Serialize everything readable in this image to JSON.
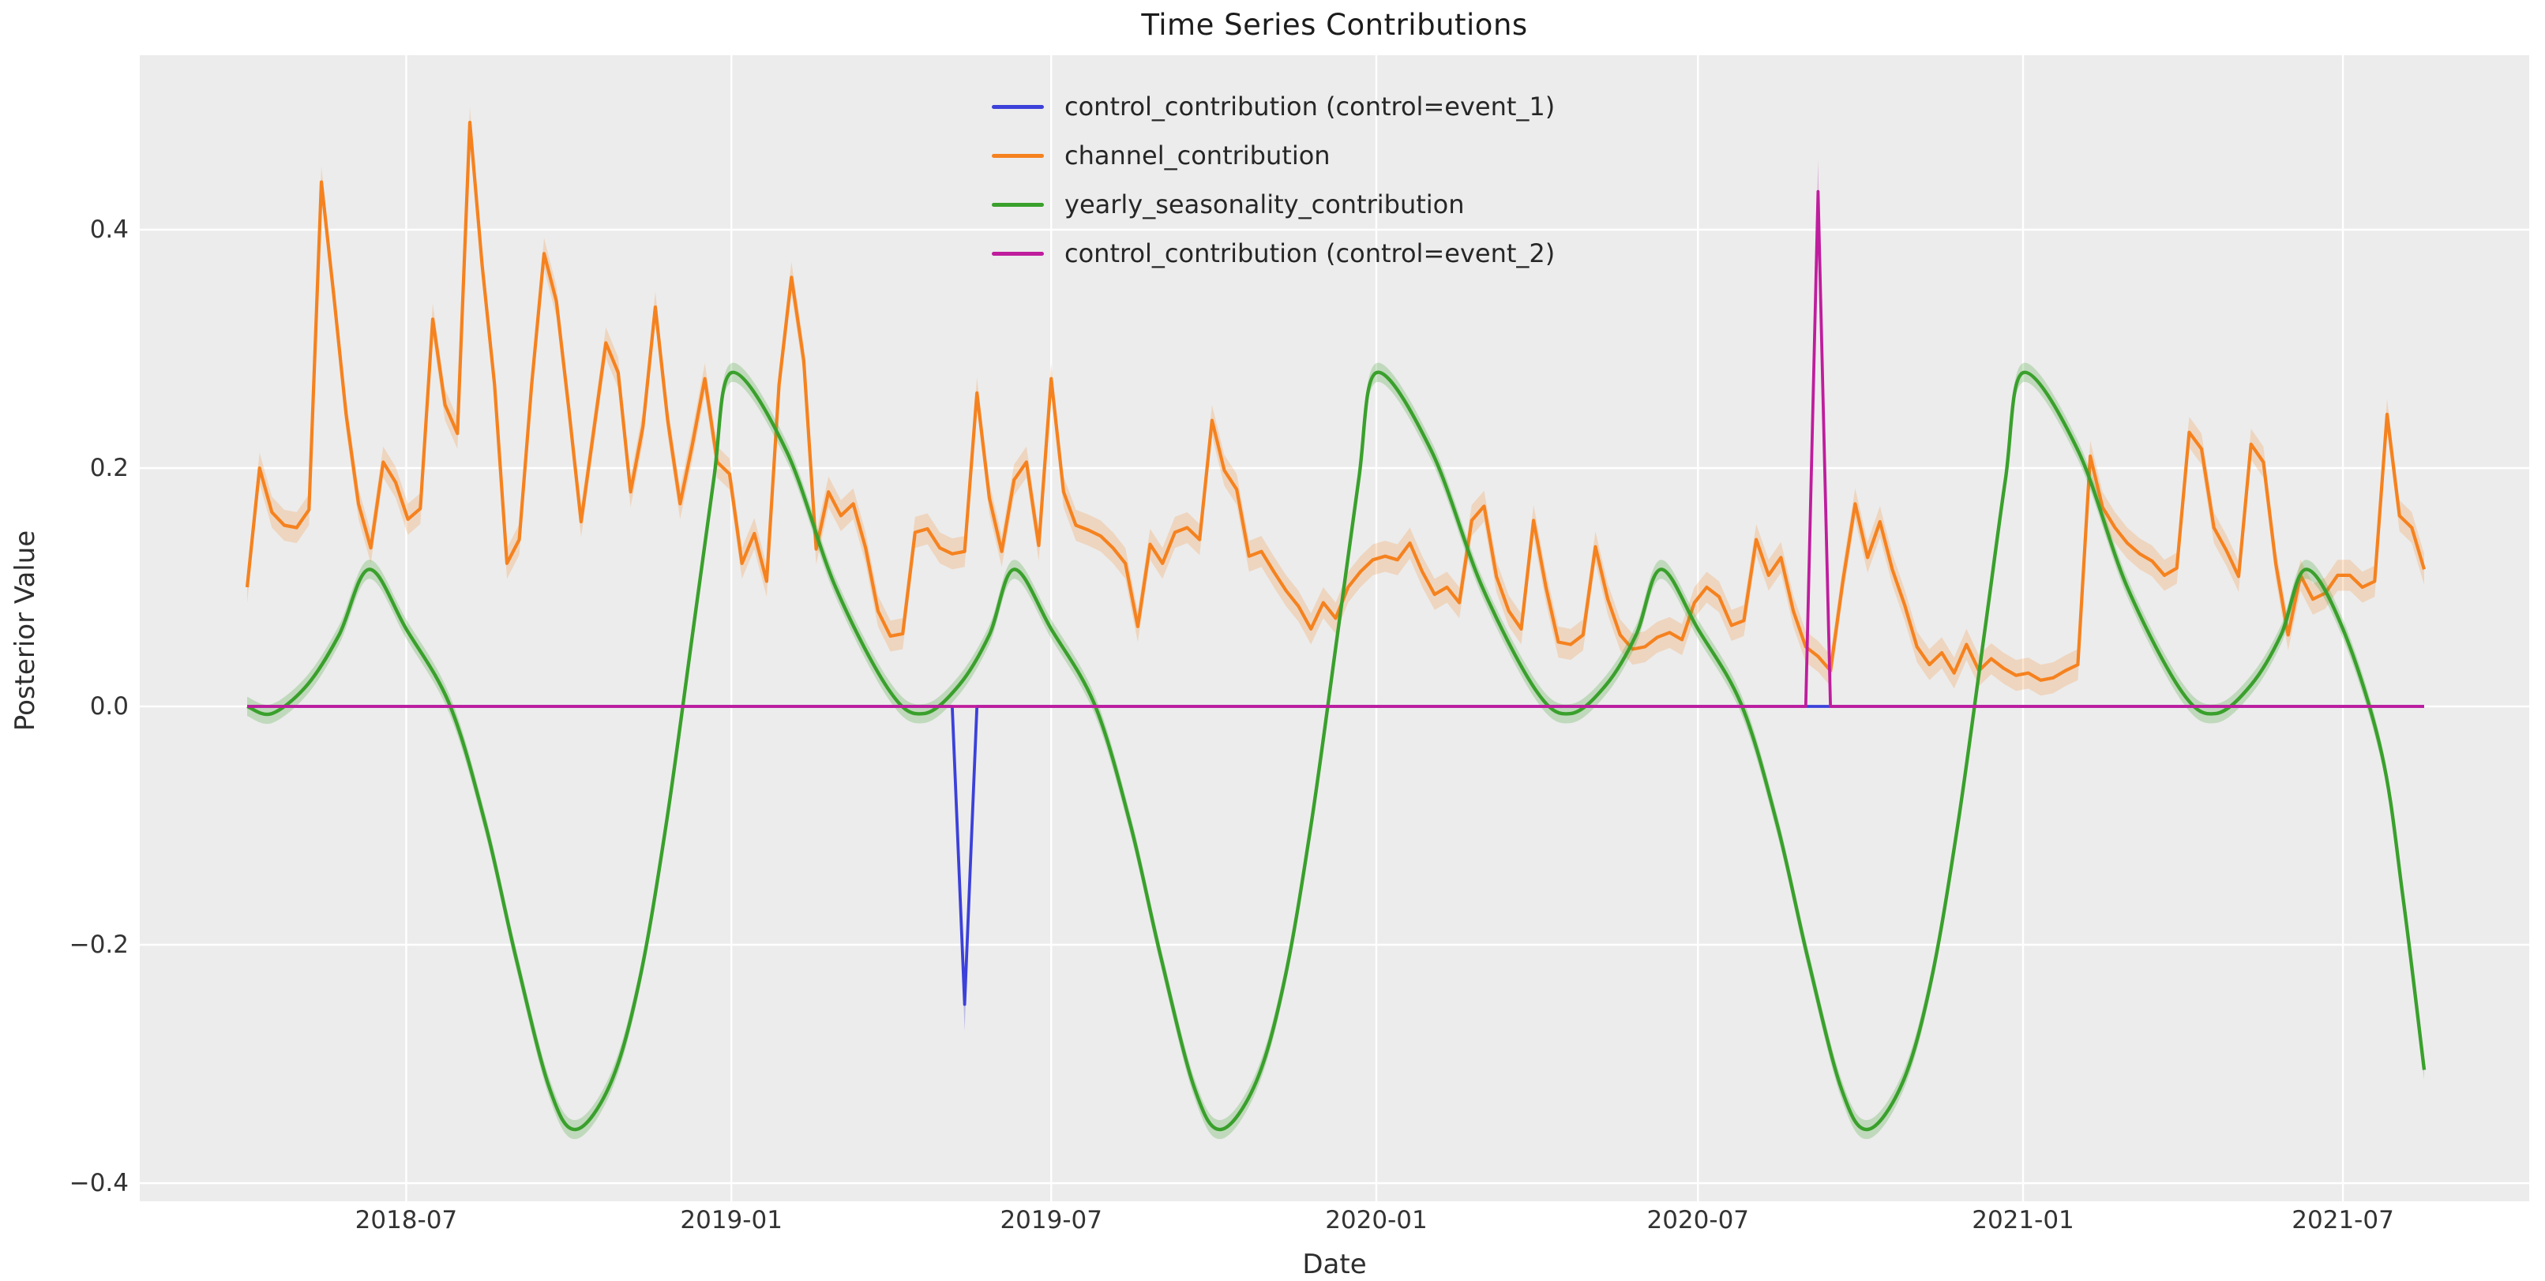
{
  "chart_data": {
    "type": "line",
    "title": "Time Series Contributions",
    "xlabel": "Date",
    "ylabel": "Posterior Value",
    "grid": true,
    "legend_position": "upper center (no frame)",
    "background_color": "#ececec",
    "grid_color": "#ffffff",
    "start_date": "2018-04-02",
    "freq_days": 7,
    "total_days": 1232,
    "ylim": [
      -0.4152,
      0.5464
    ],
    "y_ticks": [
      0.4,
      0.2,
      0.0,
      -0.2,
      -0.4
    ],
    "y_tick_labels": [
      "0.4",
      "0.2",
      "0.0",
      "−0.2",
      "−0.4"
    ],
    "x_tick_days": [
      90,
      274,
      455,
      639,
      821,
      1005,
      1186
    ],
    "x_tick_labels": [
      "2018-07",
      "2019-01",
      "2019-07",
      "2020-01",
      "2020-07",
      "2021-01",
      "2021-07"
    ],
    "series": [
      {
        "name": "control_contribution (control=event_1)",
        "color": "#3c41d9",
        "kind": "spike",
        "band_frac": 0.09,
        "points_days": [
          0,
          399,
          406,
          413,
          1232
        ],
        "points_values": [
          0,
          0,
          -0.25,
          0,
          0
        ],
        "spike_note": "flat at 0 with single downward spike to -0.25 near 2019-05"
      },
      {
        "name": "channel_contribution",
        "color": "#f5821f",
        "kind": "weekly",
        "band": 0.013,
        "values": [
          0.1,
          0.2,
          0.163,
          0.152,
          0.15,
          0.165,
          0.44,
          0.345,
          0.245,
          0.17,
          0.133,
          0.205,
          0.188,
          0.157,
          0.166,
          0.325,
          0.253,
          0.229,
          0.49,
          0.37,
          0.27,
          0.12,
          0.14,
          0.27,
          0.38,
          0.34,
          0.25,
          0.155,
          0.23,
          0.305,
          0.28,
          0.18,
          0.235,
          0.335,
          0.24,
          0.17,
          0.22,
          0.275,
          0.205,
          0.195,
          0.12,
          0.145,
          0.105,
          0.27,
          0.36,
          0.29,
          0.132,
          0.18,
          0.16,
          0.17,
          0.133,
          0.08,
          0.059,
          0.061,
          0.146,
          0.149,
          0.133,
          0.128,
          0.13,
          0.263,
          0.175,
          0.13,
          0.19,
          0.205,
          0.135,
          0.275,
          0.18,
          0.152,
          0.148,
          0.143,
          0.133,
          0.12,
          0.067,
          0.136,
          0.12,
          0.146,
          0.15,
          0.14,
          0.24,
          0.198,
          0.182,
          0.126,
          0.13,
          0.113,
          0.097,
          0.084,
          0.065,
          0.087,
          0.074,
          0.1,
          0.113,
          0.123,
          0.126,
          0.123,
          0.137,
          0.113,
          0.094,
          0.1,
          0.087,
          0.156,
          0.168,
          0.109,
          0.08,
          0.065,
          0.156,
          0.1,
          0.054,
          0.052,
          0.06,
          0.134,
          0.09,
          0.06,
          0.048,
          0.05,
          0.058,
          0.062,
          0.056,
          0.087,
          0.1,
          0.092,
          0.068,
          0.072,
          0.14,
          0.11,
          0.125,
          0.08,
          0.05,
          0.042,
          0.03,
          0.105,
          0.17,
          0.125,
          0.155,
          0.115,
          0.085,
          0.05,
          0.035,
          0.045,
          0.028,
          0.052,
          0.03,
          0.04,
          0.032,
          0.026,
          0.028,
          0.022,
          0.024,
          0.03,
          0.035,
          0.21,
          0.167,
          0.15,
          0.137,
          0.128,
          0.122,
          0.11,
          0.116,
          0.23,
          0.216,
          0.15,
          0.131,
          0.109,
          0.22,
          0.205,
          0.12,
          0.06,
          0.11,
          0.09,
          0.095,
          0.11,
          0.11,
          0.1,
          0.105,
          0.245,
          0.16,
          0.15,
          0.115
        ]
      },
      {
        "name": "yearly_seasonality_contribution",
        "color": "#3aa02c",
        "kind": "smooth",
        "band": 0.008,
        "control_points": [
          [
            0,
            0.0
          ],
          [
            14,
            -0.006
          ],
          [
            34,
            0.018
          ],
          [
            52,
            0.06
          ],
          [
            69,
            0.115
          ],
          [
            90,
            0.065
          ],
          [
            115,
            0.0
          ],
          [
            135,
            -0.1
          ],
          [
            152,
            -0.21
          ],
          [
            171,
            -0.32
          ],
          [
            186,
            -0.355
          ],
          [
            206,
            -0.315
          ],
          [
            222,
            -0.23
          ],
          [
            237,
            -0.1
          ],
          [
            252,
            0.06
          ],
          [
            264,
            0.19
          ],
          [
            274,
            0.28
          ],
          [
            305,
            0.215
          ],
          [
            333,
            0.1
          ],
          [
            364,
            0.012
          ],
          [
            383,
            -0.006
          ],
          [
            403,
            0.018
          ],
          [
            420,
            0.06
          ],
          [
            434,
            0.115
          ],
          [
            455,
            0.065
          ],
          [
            480,
            0.0
          ],
          [
            500,
            -0.1
          ],
          [
            517,
            -0.21
          ],
          [
            536,
            -0.32
          ],
          [
            551,
            -0.355
          ],
          [
            571,
            -0.315
          ],
          [
            587,
            -0.23
          ],
          [
            602,
            -0.1
          ],
          [
            617,
            0.06
          ],
          [
            629,
            0.19
          ],
          [
            639,
            0.28
          ],
          [
            670,
            0.215
          ],
          [
            699,
            0.1
          ],
          [
            730,
            0.012
          ],
          [
            749,
            -0.006
          ],
          [
            769,
            0.018
          ],
          [
            786,
            0.06
          ],
          [
            800,
            0.115
          ],
          [
            821,
            0.065
          ],
          [
            846,
            0.0
          ],
          [
            866,
            -0.1
          ],
          [
            883,
            -0.21
          ],
          [
            902,
            -0.32
          ],
          [
            917,
            -0.355
          ],
          [
            937,
            -0.315
          ],
          [
            953,
            -0.23
          ],
          [
            968,
            -0.1
          ],
          [
            983,
            0.06
          ],
          [
            995,
            0.19
          ],
          [
            1005,
            0.28
          ],
          [
            1036,
            0.215
          ],
          [
            1064,
            0.1
          ],
          [
            1095,
            0.012
          ],
          [
            1114,
            -0.006
          ],
          [
            1134,
            0.018
          ],
          [
            1151,
            0.06
          ],
          [
            1165,
            0.115
          ],
          [
            1186,
            0.065
          ],
          [
            1208,
            -0.04
          ],
          [
            1220,
            -0.16
          ],
          [
            1232,
            -0.305
          ]
        ]
      },
      {
        "name": "control_contribution (control=event_2)",
        "color": "#bf1d9d",
        "kind": "spike",
        "band_frac": 0.06,
        "points_days": [
          0,
          882,
          889,
          896,
          1232
        ],
        "points_values": [
          0,
          0,
          0.432,
          0,
          0
        ],
        "spike_note": "flat at 0 with single upward spike to +0.432 near 2020-09"
      }
    ]
  },
  "legend": {
    "entries": [
      {
        "label": "control_contribution (control=event_1)",
        "color": "#3c41d9"
      },
      {
        "label": "channel_contribution",
        "color": "#f5821f"
      },
      {
        "label": "yearly_seasonality_contribution",
        "color": "#3aa02c"
      },
      {
        "label": "control_contribution (control=event_2)",
        "color": "#bf1d9d"
      }
    ]
  }
}
